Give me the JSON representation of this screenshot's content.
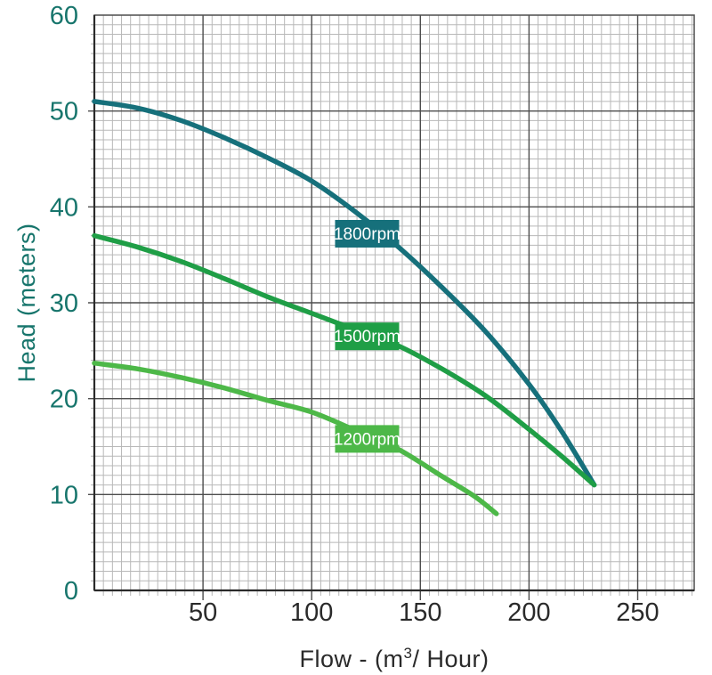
{
  "chart_data": {
    "type": "line",
    "title": "",
    "xlabel": "Flow - (m³/ Hour)",
    "ylabel": "Head (meters)",
    "xlim": [
      0,
      276
    ],
    "ylim": [
      0,
      60
    ],
    "x_ticks": [
      50,
      100,
      150,
      200,
      250
    ],
    "y_ticks": [
      0,
      10,
      20,
      30,
      40,
      50,
      60
    ],
    "grid": {
      "on": true,
      "x_minor_step": 4.1667,
      "y_minor_step": 1
    },
    "legend_position": "inline-curve-labels",
    "series": [
      {
        "name": "1800rpm",
        "rpm": 1800,
        "color": "#16707b",
        "label": {
          "text": "1800rpm",
          "bg": "#16707b",
          "text_color": "#ffffff",
          "at": {
            "flow": 125.5,
            "head": 37.2
          }
        },
        "points": [
          [
            0,
            51
          ],
          [
            20,
            50.3
          ],
          [
            40,
            49
          ],
          [
            60,
            47.2
          ],
          [
            80,
            45.1
          ],
          [
            100,
            42.7
          ],
          [
            120,
            39.5
          ],
          [
            140,
            35.8
          ],
          [
            160,
            31.6
          ],
          [
            180,
            27.0
          ],
          [
            200,
            21.5
          ],
          [
            215,
            16.6
          ],
          [
            230,
            11
          ]
        ]
      },
      {
        "name": "1500rpm",
        "rpm": 1500,
        "color": "#1f9e46",
        "label": {
          "text": "1500rpm",
          "bg": "#1f9e46",
          "text_color": "#ffffff",
          "at": {
            "flow": 125.5,
            "head": 26.5
          }
        },
        "points": [
          [
            0,
            37
          ],
          [
            20,
            35.8
          ],
          [
            40,
            34.3
          ],
          [
            60,
            32.5
          ],
          [
            80,
            30.6
          ],
          [
            100,
            28.9
          ],
          [
            120,
            27.2
          ],
          [
            140,
            25.5
          ],
          [
            160,
            23.1
          ],
          [
            180,
            20.3
          ],
          [
            200,
            16.8
          ],
          [
            215,
            14.0
          ],
          [
            230,
            11
          ]
        ]
      },
      {
        "name": "1200rpm",
        "rpm": 1200,
        "color": "#4db848",
        "label": {
          "text": "1200rpm",
          "bg": "#4db848",
          "text_color": "#ffffff",
          "at": {
            "flow": 125.5,
            "head": 15.8
          }
        },
        "points": [
          [
            0,
            23.7
          ],
          [
            20,
            23.1
          ],
          [
            40,
            22.2
          ],
          [
            60,
            21.1
          ],
          [
            80,
            19.8
          ],
          [
            100,
            18.6
          ],
          [
            120,
            16.7
          ],
          [
            140,
            14.7
          ],
          [
            160,
            11.9
          ],
          [
            175,
            9.8
          ],
          [
            185,
            8.0
          ]
        ]
      }
    ],
    "colors": {
      "background": "#ffffff",
      "grid_minor": "#b8b8b8",
      "grid_major": "#4d4d4d",
      "axis_line": "#2a2a2a",
      "x_tick_text": "#2a2a2a",
      "y_tick_text": "#17756c",
      "x_title_text": "#2a2a2a",
      "y_title_text": "#17756c",
      "label_text": "#ffffff"
    }
  }
}
